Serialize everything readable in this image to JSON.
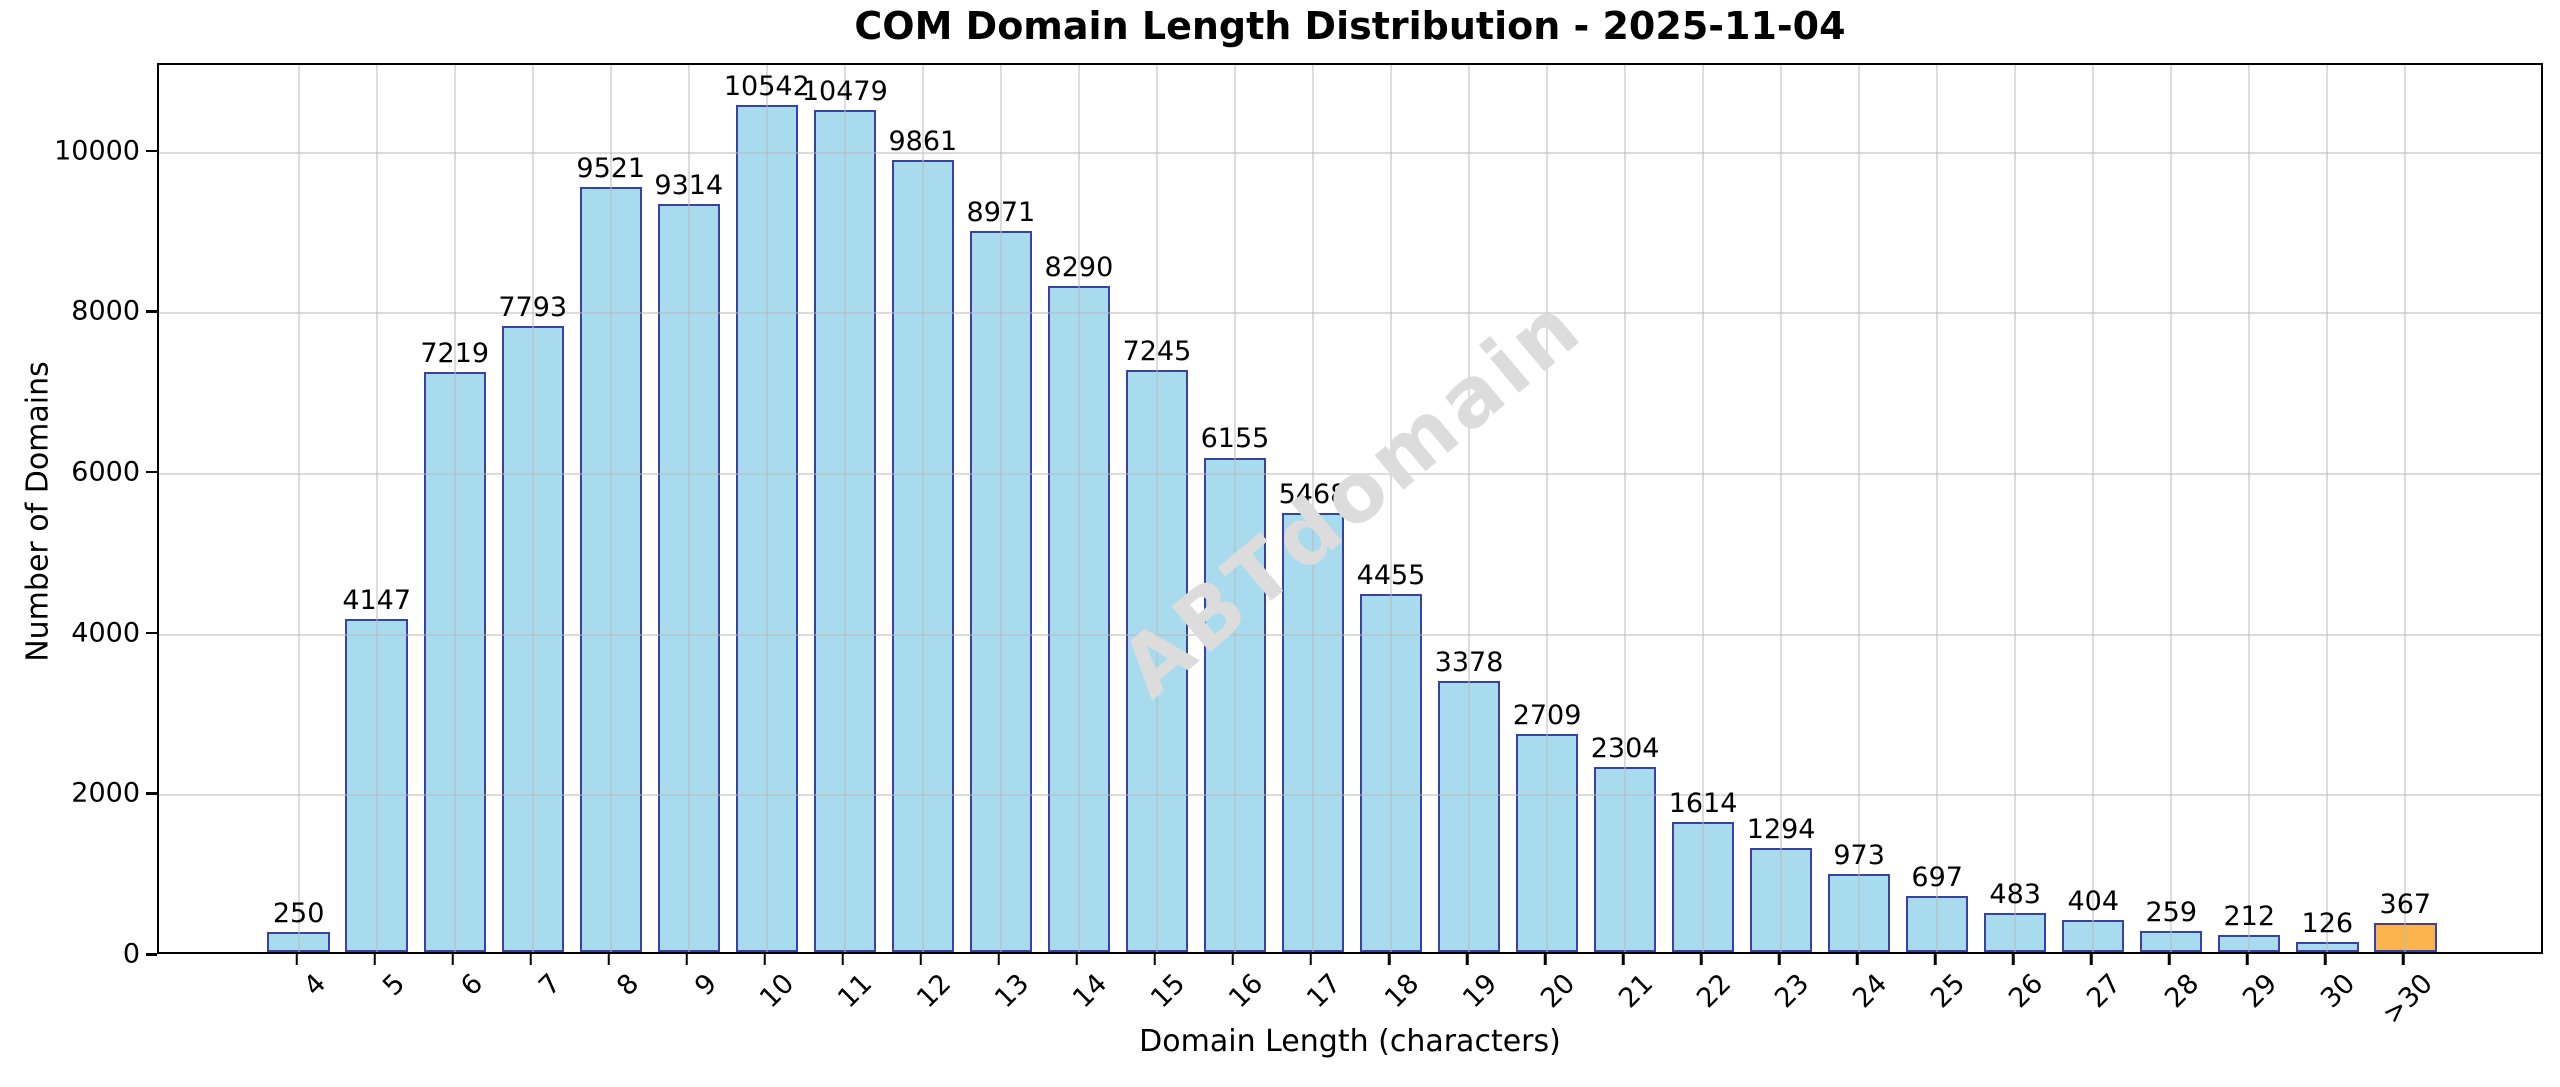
{
  "chart_data": {
    "type": "bar",
    "title": "COM Domain Length Distribution - 2025-11-04",
    "xlabel": "Domain Length (characters)",
    "ylabel": "Number of Domains",
    "categories": [
      "4",
      "5",
      "6",
      "7",
      "8",
      "9",
      "10",
      "11",
      "12",
      "13",
      "14",
      "15",
      "16",
      "17",
      "18",
      "19",
      "20",
      "21",
      "22",
      "23",
      "24",
      "25",
      "26",
      "27",
      "28",
      "29",
      "30",
      ">30"
    ],
    "values": [
      250,
      4147,
      7219,
      7793,
      9521,
      9314,
      10542,
      10479,
      9861,
      8971,
      8290,
      7245,
      6155,
      5468,
      4455,
      3378,
      2709,
      2304,
      1614,
      1294,
      973,
      697,
      483,
      404,
      259,
      212,
      126,
      367
    ],
    "value_labels": [
      "250",
      "4147",
      "7219",
      "7793",
      "9521",
      "9314",
      "10542",
      "10479",
      "9861",
      "8971",
      "8290",
      "7245",
      "6155",
      "5468",
      "4455",
      "3378",
      "2709",
      "2304",
      "1614",
      "1294",
      "973",
      "697",
      "483",
      "404",
      "259",
      "212",
      "126",
      "367"
    ],
    "yticks": [
      0,
      2000,
      4000,
      6000,
      8000,
      10000
    ],
    "ytick_labels": [
      "0",
      "2000",
      "4000",
      "6000",
      "8000",
      "10000"
    ],
    "ylim": [
      0,
      11090
    ],
    "grid": true,
    "legend_position": "none",
    "highlight_index": 27,
    "xtick_rotation_deg": 45
  },
  "watermark": {
    "text": "ABTdomain"
  },
  "colors": {
    "bar_fill": "#A8DBEE",
    "bar_edge": "#3A41A0",
    "highlight_fill": "#FBB44C",
    "highlight_edge": "#3A41A0",
    "grid": "#BEBEBE",
    "text": "#000000",
    "watermark": "#DCDCDC"
  }
}
